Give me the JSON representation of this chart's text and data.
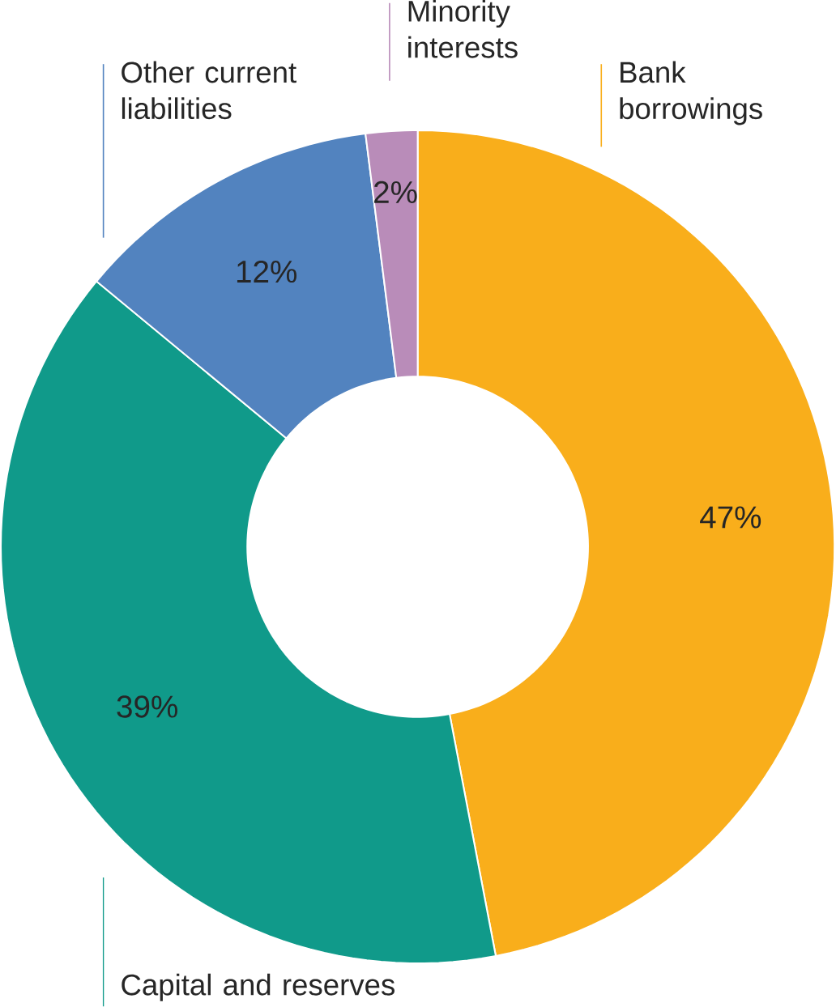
{
  "chart_data": {
    "type": "donut",
    "categories": [
      "Bank borrowings",
      "Capital and reserves",
      "Other current liabilities",
      "Minority interests"
    ],
    "values": [
      47,
      39,
      12,
      2
    ],
    "value_labels": [
      "47%",
      "39%",
      "12%",
      "2%"
    ],
    "colors": [
      "#f9ae1b",
      "#109a8a",
      "#5283bf",
      "#b98cb9"
    ]
  }
}
